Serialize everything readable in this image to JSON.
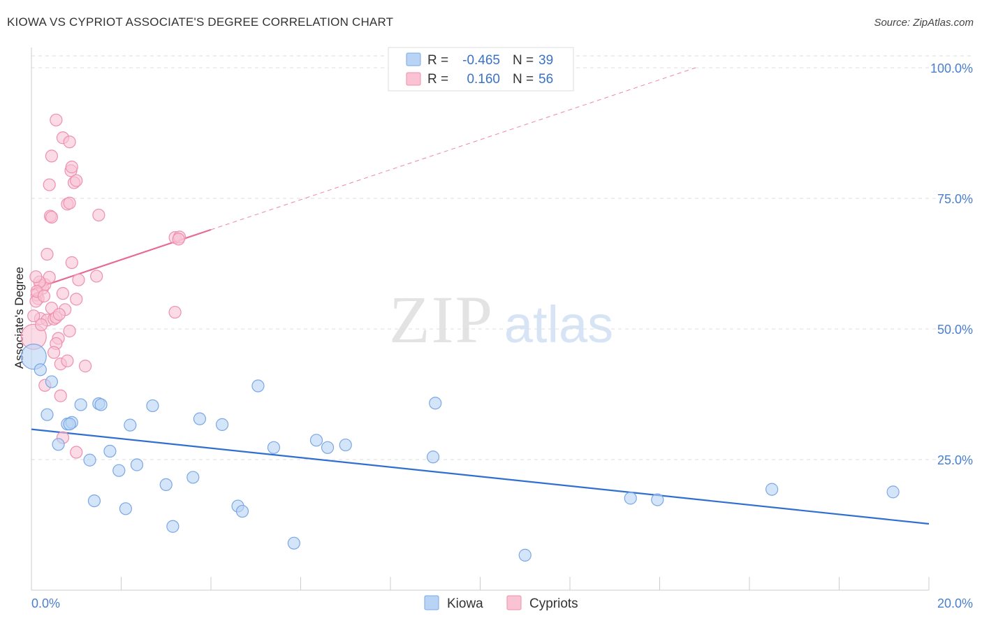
{
  "header": {
    "title": "KIOWA VS CYPRIOT ASSOCIATE'S DEGREE CORRELATION CHART",
    "source": "Source: ZipAtlas.com"
  },
  "watermark": {
    "text_zip": "ZIP",
    "text_atlas": "atlas"
  },
  "colors": {
    "kiowa_fill": "#b9d3f5",
    "kiowa_stroke": "#7aa7e6",
    "kiowa_line": "#2f6fcf",
    "cypriots_fill": "#f9c3d3",
    "cypriots_stroke": "#ef8fae",
    "cypriots_line": "#e76a93",
    "axis_label": "#4a7fd0",
    "grid": "#dddddd"
  },
  "stats_box": {
    "rows": [
      {
        "r_label": "R =",
        "r_value": "-0.465",
        "n_label": "N =",
        "n_value": "39"
      },
      {
        "r_label": "R =",
        "r_value": "0.160",
        "n_label": "N =",
        "n_value": "56"
      }
    ]
  },
  "chart_data": {
    "type": "scatter",
    "title": "KIOWA VS CYPRIOT ASSOCIATE'S DEGREE CORRELATION CHART",
    "xlabel": "",
    "ylabel": "Associate's Degree",
    "xlim": [
      0,
      20
    ],
    "ylim": [
      0,
      100
    ],
    "x_tick_labels": [
      "0.0%",
      "20.0%"
    ],
    "y_ticks": [
      {
        "value": 100,
        "label": "100.0%"
      },
      {
        "value": 75,
        "label": "75.0%"
      },
      {
        "value": 50,
        "label": "50.0%"
      },
      {
        "value": 25,
        "label": "25.0%"
      }
    ],
    "grid": true,
    "legend_position": "bottom-center",
    "series": [
      {
        "name": "Kiowa",
        "color": "#b9d3f5",
        "trend": {
          "x_start": 0.0,
          "y_start": 30.8,
          "x_end": 20.0,
          "y_end": 12.7
        },
        "points": [
          {
            "x": 0.05,
            "y": 44.7,
            "big": true
          },
          {
            "x": 0.2,
            "y": 42.2
          },
          {
            "x": 0.45,
            "y": 39.9
          },
          {
            "x": 0.35,
            "y": 33.6
          },
          {
            "x": 0.8,
            "y": 31.8
          },
          {
            "x": 0.6,
            "y": 27.9
          },
          {
            "x": 1.1,
            "y": 35.5
          },
          {
            "x": 1.5,
            "y": 35.7
          },
          {
            "x": 1.55,
            "y": 35.5
          },
          {
            "x": 2.7,
            "y": 35.3
          },
          {
            "x": 0.9,
            "y": 32.1
          },
          {
            "x": 2.2,
            "y": 31.6
          },
          {
            "x": 1.3,
            "y": 24.9
          },
          {
            "x": 1.75,
            "y": 26.6
          },
          {
            "x": 1.95,
            "y": 22.9
          },
          {
            "x": 2.35,
            "y": 24.0
          },
          {
            "x": 3.0,
            "y": 20.2
          },
          {
            "x": 3.6,
            "y": 21.6
          },
          {
            "x": 3.75,
            "y": 32.8
          },
          {
            "x": 4.25,
            "y": 31.7
          },
          {
            "x": 5.05,
            "y": 39.1
          },
          {
            "x": 5.4,
            "y": 27.3
          },
          {
            "x": 6.35,
            "y": 28.7
          },
          {
            "x": 6.6,
            "y": 27.3
          },
          {
            "x": 7.0,
            "y": 27.8
          },
          {
            "x": 1.4,
            "y": 17.1
          },
          {
            "x": 2.1,
            "y": 15.6
          },
          {
            "x": 3.15,
            "y": 12.2
          },
          {
            "x": 4.6,
            "y": 16.1
          },
          {
            "x": 4.7,
            "y": 15.1
          },
          {
            "x": 5.85,
            "y": 9.0
          },
          {
            "x": 9.0,
            "y": 35.8
          },
          {
            "x": 8.95,
            "y": 25.5
          },
          {
            "x": 11.0,
            "y": 6.7
          },
          {
            "x": 13.35,
            "y": 17.6
          },
          {
            "x": 13.95,
            "y": 17.3
          },
          {
            "x": 16.5,
            "y": 19.3
          },
          {
            "x": 19.2,
            "y": 18.8
          },
          {
            "x": 0.85,
            "y": 31.8
          }
        ]
      },
      {
        "name": "Cypriots",
        "color": "#f9c3d3",
        "trend": {
          "x_start": 0.0,
          "y_start": 57.5,
          "x_end": 4.0,
          "y_end": 69.0,
          "dashed_x_end": 14.8,
          "dashed_y_end": 100.0
        },
        "points": [
          {
            "x": 0.05,
            "y": 48.5,
            "big": true
          },
          {
            "x": 0.12,
            "y": 56.5
          },
          {
            "x": 0.15,
            "y": 55.8
          },
          {
            "x": 0.2,
            "y": 58.3
          },
          {
            "x": 0.25,
            "y": 57.8
          },
          {
            "x": 0.3,
            "y": 58.5
          },
          {
            "x": 0.35,
            "y": 64.3
          },
          {
            "x": 0.4,
            "y": 59.9
          },
          {
            "x": 0.2,
            "y": 52.0
          },
          {
            "x": 0.35,
            "y": 51.7
          },
          {
            "x": 0.45,
            "y": 54.0
          },
          {
            "x": 0.5,
            "y": 51.9
          },
          {
            "x": 0.55,
            "y": 52.2
          },
          {
            "x": 0.6,
            "y": 48.2
          },
          {
            "x": 0.55,
            "y": 47.2
          },
          {
            "x": 0.7,
            "y": 56.8
          },
          {
            "x": 0.75,
            "y": 53.7
          },
          {
            "x": 0.85,
            "y": 49.6
          },
          {
            "x": 0.9,
            "y": 62.7
          },
          {
            "x": 0.65,
            "y": 43.3
          },
          {
            "x": 0.8,
            "y": 43.9
          },
          {
            "x": 0.3,
            "y": 39.2
          },
          {
            "x": 0.65,
            "y": 37.2
          },
          {
            "x": 0.7,
            "y": 29.2
          },
          {
            "x": 0.4,
            "y": 77.6
          },
          {
            "x": 0.42,
            "y": 71.6
          },
          {
            "x": 0.45,
            "y": 71.4
          },
          {
            "x": 0.8,
            "y": 73.9
          },
          {
            "x": 0.85,
            "y": 74.1
          },
          {
            "x": 0.45,
            "y": 83.1
          },
          {
            "x": 0.55,
            "y": 90.0
          },
          {
            "x": 0.7,
            "y": 86.6
          },
          {
            "x": 0.85,
            "y": 85.8
          },
          {
            "x": 0.88,
            "y": 80.3
          },
          {
            "x": 0.9,
            "y": 81.0
          },
          {
            "x": 0.95,
            "y": 78.0
          },
          {
            "x": 1.0,
            "y": 78.4
          },
          {
            "x": 1.5,
            "y": 71.8
          },
          {
            "x": 1.45,
            "y": 60.1
          },
          {
            "x": 1.05,
            "y": 59.4
          },
          {
            "x": 1.0,
            "y": 55.7
          },
          {
            "x": 1.2,
            "y": 42.9
          },
          {
            "x": 1.0,
            "y": 26.4
          },
          {
            "x": 3.2,
            "y": 53.2
          },
          {
            "x": 3.2,
            "y": 67.5
          },
          {
            "x": 3.3,
            "y": 67.6
          },
          {
            "x": 3.28,
            "y": 67.2
          },
          {
            "x": 0.05,
            "y": 52.5
          },
          {
            "x": 0.1,
            "y": 55.3
          },
          {
            "x": 0.22,
            "y": 50.8
          },
          {
            "x": 0.18,
            "y": 59.0
          },
          {
            "x": 0.12,
            "y": 57.2
          },
          {
            "x": 0.28,
            "y": 56.3
          },
          {
            "x": 0.62,
            "y": 52.8
          },
          {
            "x": 0.1,
            "y": 60.0
          },
          {
            "x": 0.5,
            "y": 45.5
          }
        ]
      }
    ]
  }
}
